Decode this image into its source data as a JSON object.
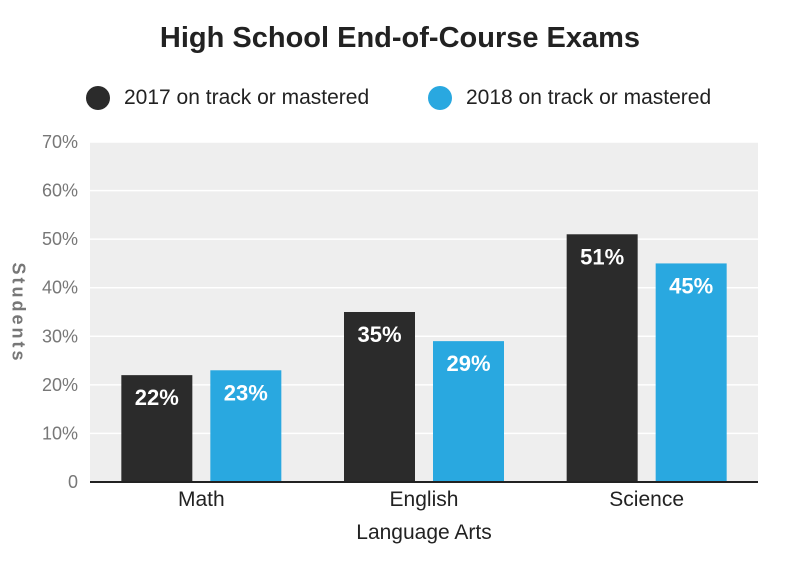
{
  "chart_data": {
    "type": "bar",
    "title": "High School End-of-Course Exams",
    "ylabel": "Students",
    "xlabel": "",
    "ylim": [
      0,
      70
    ],
    "yticks": [
      {
        "value": 0,
        "label": "0"
      },
      {
        "value": 10,
        "label": "10%"
      },
      {
        "value": 20,
        "label": "20%"
      },
      {
        "value": 30,
        "label": "30%"
      },
      {
        "value": 40,
        "label": "40%"
      },
      {
        "value": 50,
        "label": "50%"
      },
      {
        "value": 60,
        "label": "60%"
      },
      {
        "value": 70,
        "label": "70%"
      }
    ],
    "categories": [
      "Math",
      "English\nLanguage Arts",
      "Science"
    ],
    "series": [
      {
        "name": "2017 on track or mastered",
        "color": "#2b2b2b",
        "values": [
          22,
          35,
          51
        ],
        "labels": [
          "22%",
          "35%",
          "51%"
        ]
      },
      {
        "name": "2018 on track or mastered",
        "color": "#29a8e0",
        "values": [
          23,
          29,
          45
        ],
        "labels": [
          "23%",
          "29%",
          "45%"
        ]
      }
    ],
    "plot_background": "#eeeeee",
    "grid": true,
    "legend_position": "top"
  }
}
